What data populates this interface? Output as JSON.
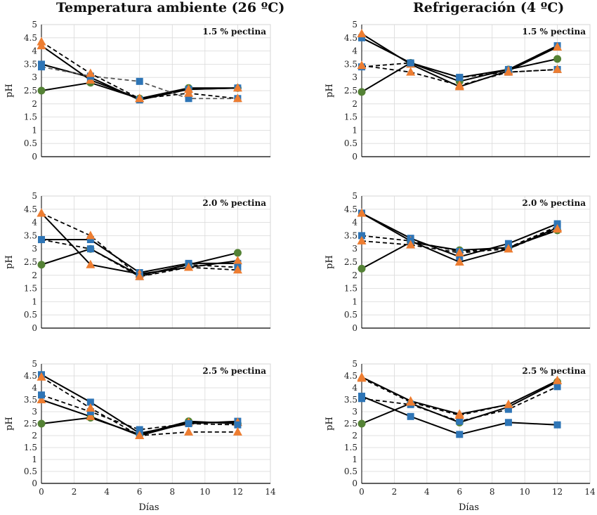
{
  "titles": {
    "left": "Temperatura ambiente (26 ºC)",
    "right": "Refrigeración (4 ºC)"
  },
  "colors": {
    "blue_square": "#2E75B6",
    "orange_triangle": "#ED7D31",
    "green_circle": "#548235",
    "line": "#000000",
    "dashed_line_gray": "#595959",
    "grid": "#d9d9d9"
  },
  "chart_data": [
    {
      "type": "line",
      "panel": "left-1",
      "annotation": "1.5 % pectina",
      "ylabel": "pH",
      "xlabel": "",
      "show_x_ticks": false,
      "x": [
        0,
        3,
        6,
        9,
        12
      ],
      "xlim": [
        0,
        14
      ],
      "ylim": [
        0,
        5
      ],
      "yticks": [
        "0",
        "0.5",
        "1",
        "1.5",
        "2",
        "2.5",
        "3",
        "3.5",
        "4",
        "4.5",
        "5"
      ],
      "xticks": [
        "0",
        "2",
        "4",
        "6",
        "8",
        "10",
        "12",
        "14"
      ],
      "series": [
        {
          "marker": "circle",
          "dash": false,
          "values": [
            2.5,
            2.8,
            2.2,
            2.6,
            2.6
          ]
        },
        {
          "marker": "square",
          "dash": false,
          "values": [
            3.5,
            3.0,
            2.15,
            2.55,
            2.6
          ]
        },
        {
          "marker": "triangle",
          "dash": false,
          "values": [
            4.2,
            2.9,
            2.2,
            2.55,
            2.6
          ]
        },
        {
          "marker": "square",
          "dash": true,
          "values": [
            3.4,
            3.05,
            2.85,
            2.2,
            2.2
          ]
        },
        {
          "marker": "triangle",
          "dash": true,
          "values": [
            4.35,
            3.15,
            2.2,
            2.4,
            2.2
          ]
        }
      ]
    },
    {
      "type": "line",
      "panel": "right-1",
      "annotation": "1.5 % pectina",
      "ylabel": "pH",
      "xlabel": "",
      "show_x_ticks": false,
      "x": [
        0,
        3,
        6,
        9,
        12
      ],
      "xlim": [
        0,
        14
      ],
      "ylim": [
        0,
        5
      ],
      "yticks": [
        "0",
        "0.5",
        "1",
        "1.5",
        "2",
        "2.5",
        "3",
        "3.5",
        "4",
        "4.5",
        "5"
      ],
      "xticks": [
        "0",
        "2",
        "4",
        "6",
        "8",
        "10",
        "12",
        "14"
      ],
      "series": [
        {
          "marker": "circle",
          "dash": false,
          "values": [
            2.45,
            3.55,
            2.85,
            3.3,
            3.7
          ]
        },
        {
          "marker": "square",
          "dash": false,
          "values": [
            4.5,
            3.55,
            3.0,
            3.3,
            4.2
          ]
        },
        {
          "marker": "triangle",
          "dash": false,
          "values": [
            4.65,
            3.5,
            2.65,
            3.25,
            4.15
          ]
        },
        {
          "marker": "square",
          "dash": true,
          "values": [
            3.4,
            3.55,
            3.0,
            3.2,
            3.3
          ]
        },
        {
          "marker": "triangle",
          "dash": true,
          "values": [
            3.45,
            3.2,
            2.7,
            3.2,
            3.3
          ]
        }
      ]
    },
    {
      "type": "line",
      "panel": "left-2",
      "annotation": "2.0 % pectina",
      "ylabel": "pH",
      "xlabel": "",
      "show_x_ticks": false,
      "x": [
        0,
        3,
        6,
        9,
        12
      ],
      "xlim": [
        0,
        14
      ],
      "ylim": [
        0,
        5
      ],
      "yticks": [
        "0",
        "0.5",
        "1",
        "1.5",
        "2",
        "2.5",
        "3",
        "3.5",
        "4",
        "4.5",
        "5"
      ],
      "xticks": [
        "0",
        "2",
        "4",
        "6",
        "8",
        "10",
        "12",
        "14"
      ],
      "series": [
        {
          "marker": "circle",
          "dash": false,
          "values": [
            2.4,
            3.0,
            2.0,
            2.4,
            2.85
          ]
        },
        {
          "marker": "square",
          "dash": false,
          "values": [
            3.35,
            3.35,
            2.1,
            2.45,
            2.45
          ]
        },
        {
          "marker": "triangle",
          "dash": false,
          "values": [
            4.35,
            2.4,
            2.05,
            2.3,
            2.55
          ]
        },
        {
          "marker": "square",
          "dash": true,
          "values": [
            3.35,
            3.0,
            1.95,
            2.4,
            2.3
          ]
        },
        {
          "marker": "triangle",
          "dash": true,
          "values": [
            4.35,
            3.5,
            1.95,
            2.3,
            2.2
          ]
        }
      ]
    },
    {
      "type": "line",
      "panel": "right-2",
      "annotation": "2.0 % pectina",
      "ylabel": "pH",
      "xlabel": "",
      "show_x_ticks": false,
      "x": [
        0,
        3,
        6,
        9,
        12
      ],
      "xlim": [
        0,
        14
      ],
      "ylim": [
        0,
        5
      ],
      "yticks": [
        "0",
        "0.5",
        "1",
        "1.5",
        "2",
        "2.5",
        "3",
        "3.5",
        "4",
        "4.5",
        "5"
      ],
      "xticks": [
        "0",
        "2",
        "4",
        "6",
        "8",
        "10",
        "12",
        "14"
      ],
      "series": [
        {
          "marker": "circle",
          "dash": false,
          "values": [
            2.25,
            3.25,
            2.95,
            3.05,
            3.7
          ]
        },
        {
          "marker": "square",
          "dash": false,
          "values": [
            4.35,
            3.4,
            2.7,
            3.2,
            3.95
          ]
        },
        {
          "marker": "triangle",
          "dash": false,
          "values": [
            4.35,
            3.3,
            2.5,
            3.0,
            3.8
          ]
        },
        {
          "marker": "square",
          "dash": true,
          "values": [
            3.5,
            3.3,
            2.9,
            3.05,
            3.85
          ]
        },
        {
          "marker": "triangle",
          "dash": true,
          "values": [
            3.3,
            3.15,
            2.85,
            3.0,
            3.75
          ]
        }
      ]
    },
    {
      "type": "line",
      "panel": "left-3",
      "annotation": "2.5 % pectina",
      "ylabel": "pH",
      "xlabel": "Días",
      "show_x_ticks": true,
      "x": [
        0,
        3,
        6,
        9,
        12
      ],
      "xlim": [
        0,
        14
      ],
      "ylim": [
        0,
        5
      ],
      "yticks": [
        "0",
        "0.5",
        "1",
        "1.5",
        "2",
        "2.5",
        "3",
        "3.5",
        "4",
        "4.5",
        "5"
      ],
      "xticks": [
        "0",
        "2",
        "4",
        "6",
        "8",
        "10",
        "12",
        "14"
      ],
      "series": [
        {
          "marker": "circle",
          "dash": false,
          "values": [
            2.5,
            2.75,
            2.05,
            2.6,
            2.5
          ]
        },
        {
          "marker": "square",
          "dash": false,
          "values": [
            4.55,
            3.4,
            2.1,
            2.5,
            2.6
          ]
        },
        {
          "marker": "triangle",
          "dash": false,
          "values": [
            3.5,
            2.8,
            2.0,
            2.55,
            2.55
          ]
        },
        {
          "marker": "square",
          "dash": true,
          "values": [
            3.7,
            3.0,
            2.25,
            2.5,
            2.45
          ]
        },
        {
          "marker": "triangle",
          "dash": true,
          "values": [
            4.45,
            3.15,
            2.0,
            2.15,
            2.15
          ]
        }
      ]
    },
    {
      "type": "line",
      "panel": "right-3",
      "annotation": "2.5 % pectina",
      "ylabel": "pH",
      "xlabel": "Días",
      "show_x_ticks": true,
      "x": [
        0,
        3,
        6,
        9,
        12
      ],
      "xlim": [
        0,
        14
      ],
      "ylim": [
        0,
        5
      ],
      "yticks": [
        "0",
        "0.5",
        "1",
        "1.5",
        "2",
        "2.5",
        "3",
        "3.5",
        "4",
        "4.5",
        "5"
      ],
      "xticks": [
        "0",
        "2",
        "4",
        "6",
        "8",
        "10",
        "12",
        "14"
      ],
      "series": [
        {
          "marker": "circle",
          "dash": false,
          "values": [
            2.5,
            3.35,
            2.55,
            3.2,
            4.25
          ]
        },
        {
          "marker": "square",
          "dash": false,
          "values": [
            3.65,
            2.8,
            2.05,
            2.55,
            2.45
          ]
        },
        {
          "marker": "triangle",
          "dash": false,
          "values": [
            4.45,
            3.45,
            2.9,
            3.3,
            4.3
          ]
        },
        {
          "marker": "square",
          "dash": true,
          "values": [
            3.55,
            3.3,
            2.6,
            3.1,
            4.05
          ]
        },
        {
          "marker": "triangle",
          "dash": true,
          "values": [
            4.4,
            3.4,
            2.85,
            3.3,
            4.3
          ]
        }
      ]
    }
  ]
}
